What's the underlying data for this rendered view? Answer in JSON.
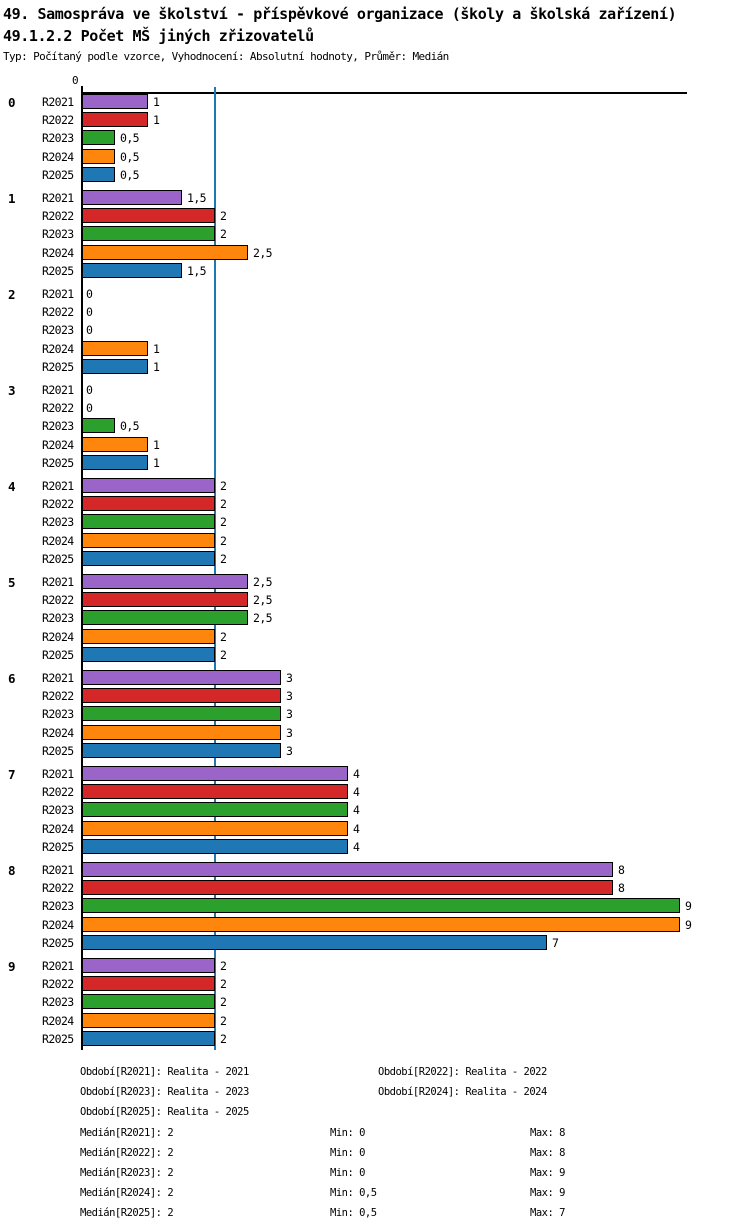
{
  "header": {
    "title_line1": "49. Samospráva ve školství - příspěvkové organizace (školy a školská zařízení)",
    "title_line2": "49.1.2.2 Počet MŠ jiných zřizovatelů",
    "subtitle": "Typ: Počítaný podle vzorce, Vyhodnocení: Absolutní hodnoty, Průměr: Medián"
  },
  "chart_data": {
    "type": "bar",
    "orientation": "horizontal",
    "title": "49.1.2.2 Počet MŠ jiných zřizovatelů",
    "categories": [
      "0",
      "1",
      "2",
      "3",
      "4",
      "5",
      "6",
      "7",
      "8",
      "9"
    ],
    "series_labels": [
      "R2021",
      "R2022",
      "R2023",
      "R2024",
      "R2025"
    ],
    "series_colors": [
      "#9a64c8",
      "#d62728",
      "#2ca02c",
      "#ff860d",
      "#1f77b4"
    ],
    "groups": [
      {
        "category": "0",
        "values": [
          1,
          1,
          0.5,
          0.5,
          0.5
        ]
      },
      {
        "category": "1",
        "values": [
          1.5,
          2,
          2,
          2.5,
          1.5
        ]
      },
      {
        "category": "2",
        "values": [
          0,
          0,
          0,
          1,
          1
        ]
      },
      {
        "category": "3",
        "values": [
          0,
          0,
          0.5,
          1,
          1
        ]
      },
      {
        "category": "4",
        "values": [
          2,
          2,
          2,
          2,
          2
        ]
      },
      {
        "category": "5",
        "values": [
          2.5,
          2.5,
          2.5,
          2,
          2
        ]
      },
      {
        "category": "6",
        "values": [
          3,
          3,
          3,
          3,
          3
        ]
      },
      {
        "category": "7",
        "values": [
          4,
          4,
          4,
          4,
          4
        ]
      },
      {
        "category": "8",
        "values": [
          8,
          8,
          9,
          9,
          7
        ]
      },
      {
        "category": "9",
        "values": [
          2,
          2,
          2,
          2,
          2
        ]
      }
    ],
    "xlim": [
      0,
      9.12
    ],
    "x_axis_tick_label": "0",
    "median_line_value": 2,
    "median_line_color": "#1f77b4",
    "bar_border_color": "#000000",
    "decimal_separator": ","
  },
  "legend": {
    "periods": [
      "Období[R2021]: Realita - 2021",
      "Období[R2022]: Realita - 2022",
      "Období[R2023]: Realita - 2023",
      "Období[R2024]: Realita - 2024",
      "Období[R2025]: Realita - 2025"
    ],
    "stats": [
      {
        "median": "Medián[R2021]: 2",
        "min": "Min: 0",
        "max": "Max: 8"
      },
      {
        "median": "Medián[R2022]: 2",
        "min": "Min: 0",
        "max": "Max: 8"
      },
      {
        "median": "Medián[R2023]: 2",
        "min": "Min: 0",
        "max": "Max: 9"
      },
      {
        "median": "Medián[R2024]: 2",
        "min": "Min: 0,5",
        "max": "Max: 9"
      },
      {
        "median": "Medián[R2025]: 2",
        "min": "Min: 0,5",
        "max": "Max: 7"
      }
    ]
  }
}
